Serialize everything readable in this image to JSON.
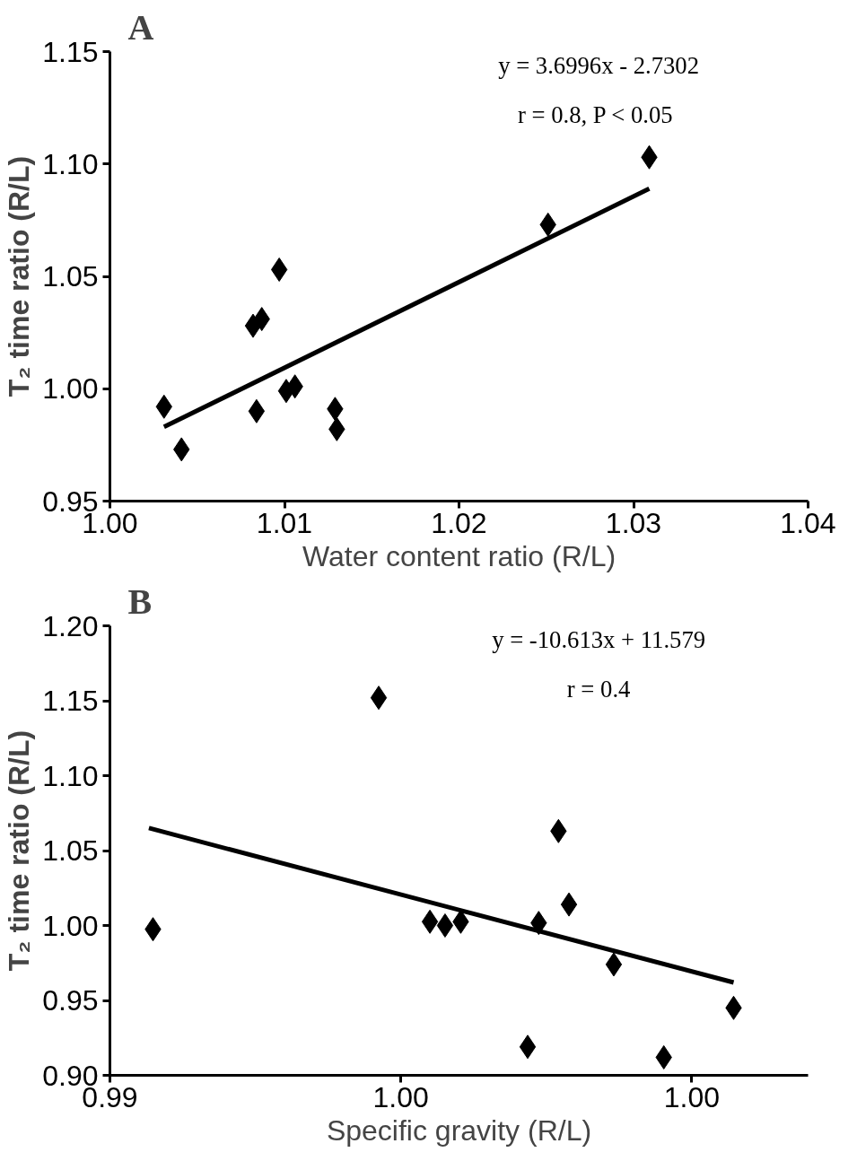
{
  "chart_data": [
    {
      "type": "scatter",
      "title": "A",
      "xlabel": "Water content ratio (R/L)",
      "ylabel": "T₂ time ratio (R/L)",
      "xlim": [
        1.0,
        1.04
      ],
      "ylim": [
        0.95,
        1.15
      ],
      "xticks": [
        {
          "value": 1.0,
          "label": "1.00"
        },
        {
          "value": 1.01,
          "label": "1.01"
        },
        {
          "value": 1.02,
          "label": "1.02"
        },
        {
          "value": 1.03,
          "label": "1.03"
        },
        {
          "value": 1.04,
          "label": "1.04"
        }
      ],
      "yticks": [
        {
          "value": 0.95,
          "label": "0.95"
        },
        {
          "value": 1.0,
          "label": "1.00"
        },
        {
          "value": 1.05,
          "label": "1.05"
        },
        {
          "value": 1.1,
          "label": "1.10"
        },
        {
          "value": 1.15,
          "label": "1.15"
        }
      ],
      "grid": false,
      "annotations": [
        "y = 3.6996x - 2.7302",
        "r = 0.8, P  < 0.05"
      ],
      "series": [
        {
          "marker": "diamond",
          "color": "#000000",
          "x": [
            1.0031,
            1.0041,
            1.0082,
            1.0087,
            1.0097,
            1.0084,
            1.0101,
            1.0106,
            1.0129,
            1.013,
            1.0251,
            1.0309
          ],
          "values": [
            0.992,
            0.973,
            1.028,
            1.031,
            1.053,
            0.99,
            0.999,
            1.001,
            0.991,
            0.982,
            1.073,
            1.103
          ]
        },
        {
          "type": "line",
          "color": "#000000",
          "x": [
            1.0031,
            1.0309
          ],
          "values": [
            0.983,
            1.089
          ]
        }
      ]
    },
    {
      "type": "scatter",
      "title": "B",
      "xlabel": "Specific gravity (R/L)",
      "ylabel": "T₂ time ratio (R/L)",
      "xlim": [
        0.99,
        1.002
      ],
      "ylim": [
        0.9,
        1.2
      ],
      "xticks": [
        {
          "value": 0.99,
          "label": "0.99"
        },
        {
          "value": 0.995,
          "label": "1.00"
        },
        {
          "value": 1.0,
          "label": "1.00"
        }
      ],
      "yticks": [
        {
          "value": 0.9,
          "label": "0.90"
        },
        {
          "value": 0.95,
          "label": "0.95"
        },
        {
          "value": 1.0,
          "label": "1.00"
        },
        {
          "value": 1.05,
          "label": "1.05"
        },
        {
          "value": 1.1,
          "label": "1.10"
        },
        {
          "value": 1.15,
          "label": "1.15"
        },
        {
          "value": 1.2,
          "label": "1.20"
        }
      ],
      "grid": false,
      "annotations": [
        "y = -10.613x + 11.579",
        "r = 0.4"
      ],
      "series": [
        {
          "marker": "diamond",
          "color": "#000000",
          "x": [
            0.99074,
            0.99462,
            0.9955,
            0.99576,
            0.99603,
            0.99718,
            0.99737,
            0.99771,
            0.99789,
            0.99866,
            0.99952,
            1.00072
          ],
          "values": [
            0.9975,
            1.152,
            1.0025,
            1.0,
            1.0025,
            0.919,
            1.0017,
            1.063,
            1.014,
            0.974,
            0.912,
            0.945
          ]
        },
        {
          "type": "line",
          "color": "#000000",
          "x": [
            0.99067,
            1.00072
          ],
          "values": [
            1.065,
            0.962
          ]
        }
      ]
    }
  ]
}
